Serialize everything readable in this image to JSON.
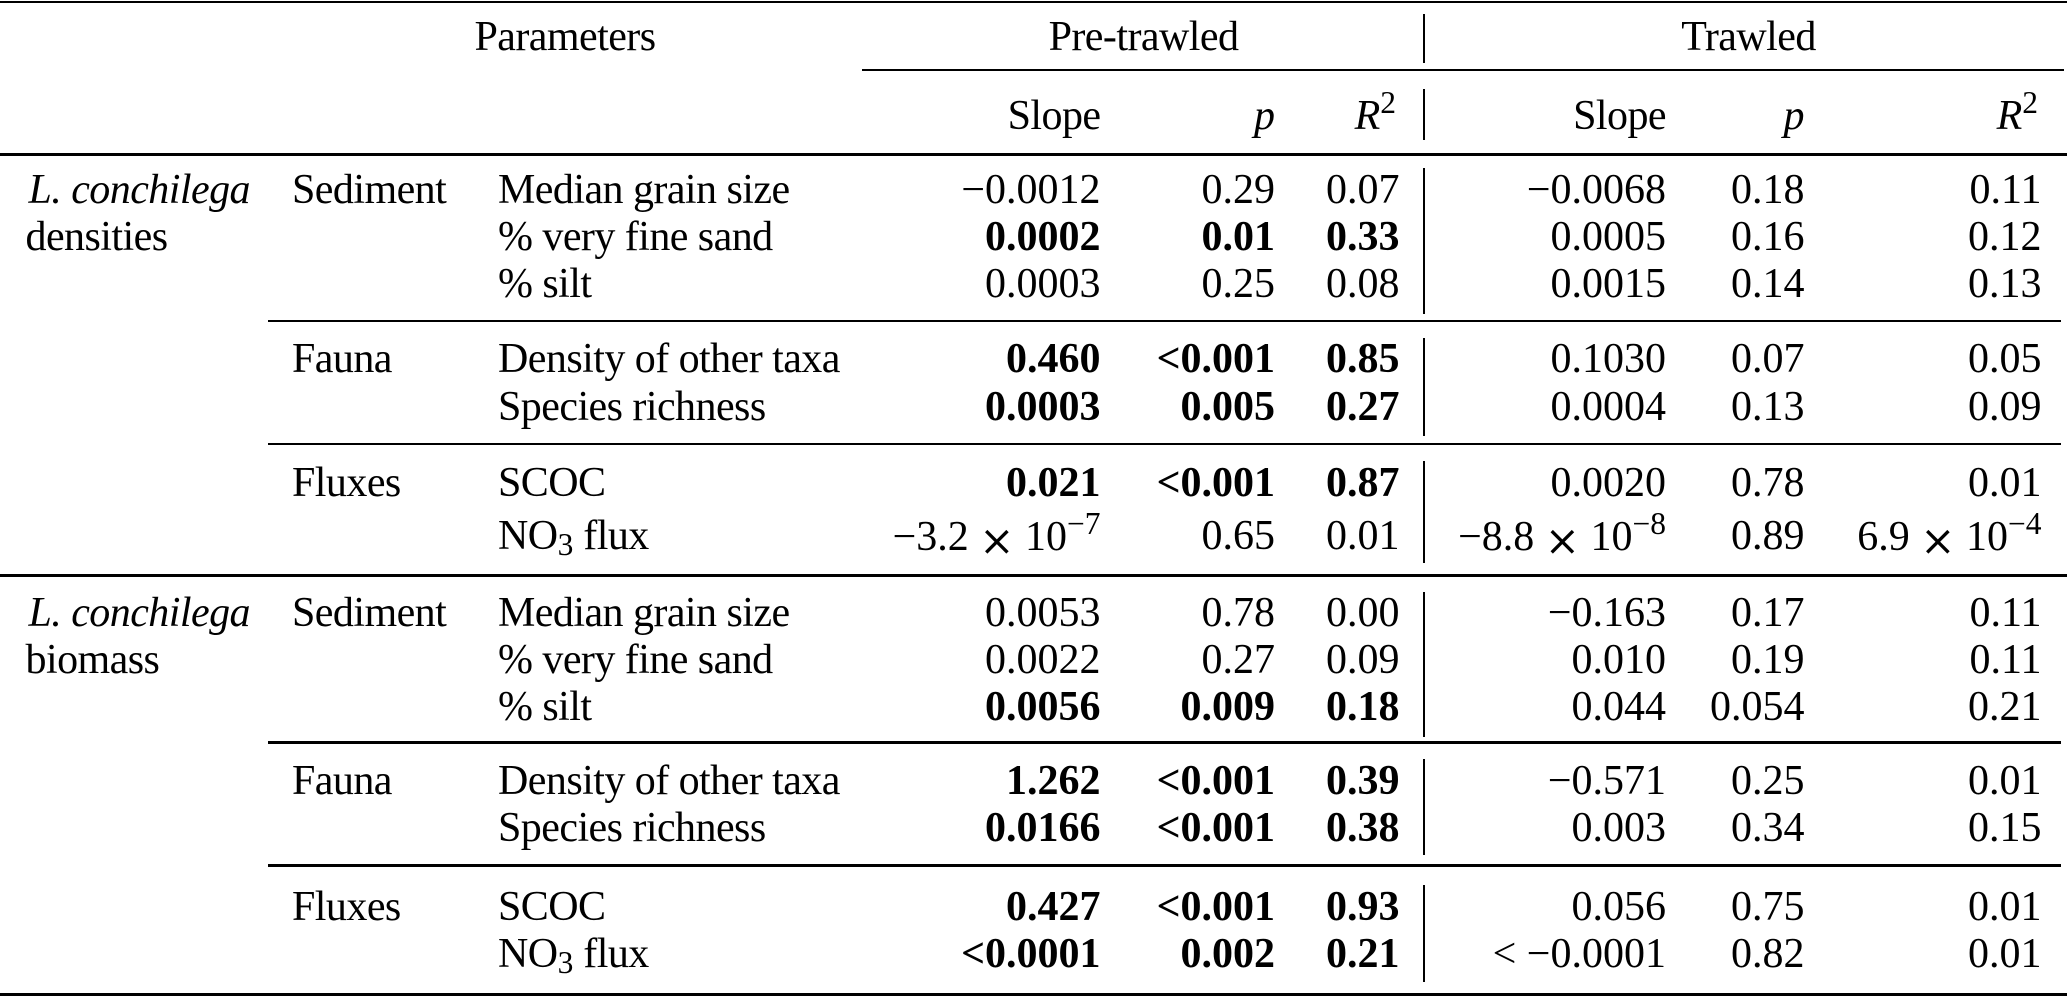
{
  "table": {
    "title_row": {
      "parameters": "Parameters",
      "pre_trawled": "Pre-trawled",
      "trawled": "Trawled"
    },
    "columns": {
      "slope": "Slope",
      "p": "p",
      "r2": "R²"
    },
    "groups": [
      {
        "label_line1": "L. conchilega",
        "label_line2": "densities"
      },
      {
        "label_line1": "L. conchilega",
        "label_line2": "biomass"
      }
    ],
    "rows": [
      {
        "group": "L. conchilega densities",
        "category": "Sediment",
        "parameter": "Median grain size",
        "pre": {
          "slope": "−0.0012",
          "p": "0.29",
          "r2": "0.07",
          "bold": false
        },
        "trawled": {
          "slope": "−0.0068",
          "p": "0.18",
          "r2": "0.11",
          "bold": false
        }
      },
      {
        "group": "L. conchilega densities",
        "category": "Sediment",
        "parameter": "% very fine sand",
        "pre": {
          "slope": "0.0002",
          "p": "0.01",
          "r2": "0.33",
          "bold": true
        },
        "trawled": {
          "slope": "0.0005",
          "p": "0.16",
          "r2": "0.12",
          "bold": false
        }
      },
      {
        "group": "L. conchilega densities",
        "category": "Sediment",
        "parameter": "% silt",
        "pre": {
          "slope": "0.0003",
          "p": "0.25",
          "r2": "0.08",
          "bold": false
        },
        "trawled": {
          "slope": "0.0015",
          "p": "0.14",
          "r2": "0.13",
          "bold": false
        }
      },
      {
        "group": "L. conchilega densities",
        "category": "Fauna",
        "parameter": "Density of other taxa",
        "pre": {
          "slope": "0.460",
          "p": "<0.001",
          "r2": "0.85",
          "bold": true
        },
        "trawled": {
          "slope": "0.1030",
          "p": "0.07",
          "r2": "0.05",
          "bold": false
        }
      },
      {
        "group": "L. conchilega densities",
        "category": "Fauna",
        "parameter": "Species richness",
        "pre": {
          "slope": "0.0003",
          "p": "0.005",
          "r2": "0.27",
          "bold": true
        },
        "trawled": {
          "slope": "0.0004",
          "p": "0.13",
          "r2": "0.09",
          "bold": false
        }
      },
      {
        "group": "L. conchilega densities",
        "category": "Fluxes",
        "parameter": "SCOC",
        "pre": {
          "slope": "0.021",
          "p": "<0.001",
          "r2": "0.87",
          "bold": true
        },
        "trawled": {
          "slope": "0.0020",
          "p": "0.78",
          "r2": "0.01",
          "bold": false
        }
      },
      {
        "group": "L. conchilega densities",
        "category": "Fluxes",
        "parameter": "NO₃ flux",
        "pre": {
          "slope": "−3.2 × 10⁻⁷",
          "p": "0.65",
          "r2": "0.01",
          "bold": false
        },
        "trawled": {
          "slope": "−8.8 × 10⁻⁸",
          "p": "0.89",
          "r2": "6.9 × 10⁻⁴",
          "bold": false
        }
      },
      {
        "group": "L. conchilega biomass",
        "category": "Sediment",
        "parameter": "Median grain size",
        "pre": {
          "slope": "0.0053",
          "p": "0.78",
          "r2": "0.00",
          "bold": false
        },
        "trawled": {
          "slope": "−0.163",
          "p": "0.17",
          "r2": "0.11",
          "bold": false
        }
      },
      {
        "group": "L. conchilega biomass",
        "category": "Sediment",
        "parameter": "% very fine sand",
        "pre": {
          "slope": "0.0022",
          "p": "0.27",
          "r2": "0.09",
          "bold": false
        },
        "trawled": {
          "slope": "0.010",
          "p": "0.19",
          "r2": "0.11",
          "bold": false
        }
      },
      {
        "group": "L. conchilega biomass",
        "category": "Sediment",
        "parameter": "% silt",
        "pre": {
          "slope": "0.0056",
          "p": "0.009",
          "r2": "0.18",
          "bold": true
        },
        "trawled": {
          "slope": "0.044",
          "p": "0.054",
          "r2": "0.21",
          "bold": false
        }
      },
      {
        "group": "L. conchilega biomass",
        "category": "Fauna",
        "parameter": "Density of other taxa",
        "pre": {
          "slope": "1.262",
          "p": "<0.001",
          "r2": "0.39",
          "bold": true
        },
        "trawled": {
          "slope": "−0.571",
          "p": "0.25",
          "r2": "0.01",
          "bold": false
        }
      },
      {
        "group": "L. conchilega biomass",
        "category": "Fauna",
        "parameter": "Species richness",
        "pre": {
          "slope": "0.0166",
          "p": "<0.001",
          "r2": "0.38",
          "bold": true
        },
        "trawled": {
          "slope": "0.003",
          "p": "0.34",
          "r2": "0.15",
          "bold": false
        }
      },
      {
        "group": "L. conchilega biomass",
        "category": "Fluxes",
        "parameter": "SCOC",
        "pre": {
          "slope": "0.427",
          "p": "<0.001",
          "r2": "0.93",
          "bold": true
        },
        "trawled": {
          "slope": "0.056",
          "p": "0.75",
          "r2": "0.01",
          "bold": false
        }
      },
      {
        "group": "L. conchilega biomass",
        "category": "Fluxes",
        "parameter": "NO₃ flux",
        "pre": {
          "slope": "<0.0001",
          "p": "0.002",
          "r2": "0.21",
          "bold": true
        },
        "trawled": {
          "slope": "< −0.0001",
          "p": "0.82",
          "r2": "0.01",
          "bold": false
        }
      }
    ],
    "colors": {
      "text": "#000000",
      "rule": "#000000",
      "background": "#ffffff"
    }
  }
}
